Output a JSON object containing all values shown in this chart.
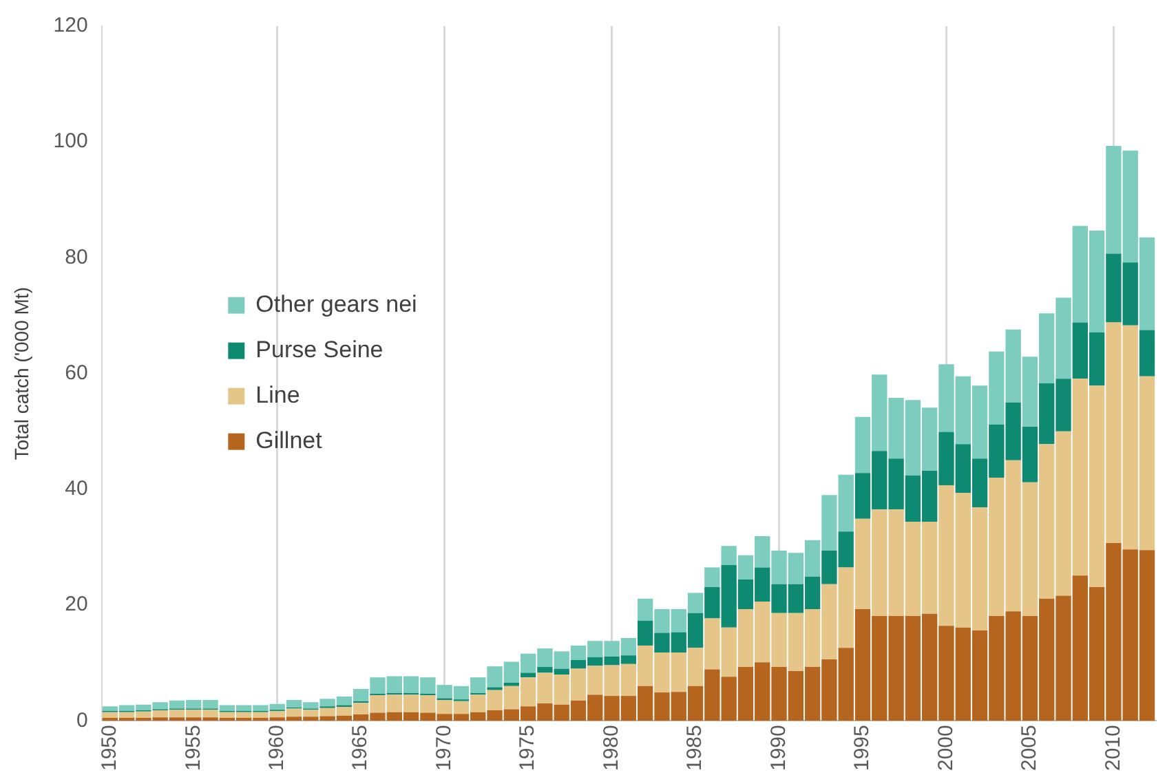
{
  "chart_data": {
    "type": "bar",
    "stacked": true,
    "ylabel": "Total catch ('000 Mt)",
    "categories": [
      "1950",
      null,
      null,
      null,
      null,
      "1955",
      null,
      null,
      null,
      null,
      "1960",
      null,
      null,
      null,
      null,
      "1965",
      null,
      null,
      null,
      null,
      "1970",
      null,
      null,
      null,
      null,
      "1975",
      null,
      null,
      null,
      null,
      "1980",
      null,
      null,
      null,
      null,
      "1985",
      null,
      null,
      null,
      null,
      "1990",
      null,
      null,
      null,
      null,
      "1995",
      null,
      null,
      null,
      null,
      "2000",
      null,
      null,
      null,
      null,
      "2005",
      null,
      null,
      null,
      null,
      "2010",
      null,
      null
    ],
    "series": [
      {
        "name": "Gillnet",
        "color": "#b5651d",
        "values": [
          0.5,
          0.5,
          0.5,
          0.6,
          0.6,
          0.6,
          0.6,
          0.5,
          0.5,
          0.5,
          0.6,
          0.7,
          0.7,
          0.8,
          0.9,
          1.1,
          1.4,
          1.5,
          1.5,
          1.4,
          1.2,
          1.2,
          1.5,
          1.8,
          2.0,
          2.5,
          3.0,
          2.8,
          3.5,
          4.5,
          4.3,
          4.3,
          6.0,
          4.9,
          5.0,
          6.0,
          8.9,
          7.6,
          9.3,
          10.1,
          9.3,
          8.6,
          9.3,
          10.6,
          12.6,
          19.3,
          18.1,
          18.1,
          18.1,
          18.5,
          16.4,
          16.1,
          15.6,
          18.1,
          18.9,
          18.1,
          21.1,
          21.6,
          25.1,
          23.1,
          30.7,
          29.6,
          29.5
        ]
      },
      {
        "name": "Line",
        "color": "#e6c688",
        "values": [
          1.0,
          1.0,
          1.1,
          1.2,
          1.3,
          1.3,
          1.3,
          1.0,
          1.0,
          1.0,
          1.1,
          1.4,
          1.2,
          1.4,
          1.5,
          2.0,
          3.0,
          3.0,
          3.0,
          3.0,
          2.4,
          2.2,
          3.0,
          3.5,
          4.0,
          5.0,
          5.3,
          5.2,
          5.5,
          5.0,
          5.3,
          5.5,
          7.0,
          6.9,
          6.8,
          6.6,
          8.8,
          8.5,
          10.0,
          10.5,
          9.3,
          10.0,
          10.0,
          13.0,
          13.9,
          15.6,
          18.4,
          18.4,
          16.3,
          15.9,
          24.3,
          23.3,
          21.3,
          23.9,
          26.1,
          23.1,
          26.7,
          28.4,
          34.0,
          34.8,
          38.1,
          38.7,
          30.0
        ]
      },
      {
        "name": "Purse Seine",
        "color": "#0f8a72",
        "values": [
          0.2,
          0.2,
          0.2,
          0.2,
          0.2,
          0.2,
          0.2,
          0.2,
          0.2,
          0.2,
          0.2,
          0.2,
          0.2,
          0.3,
          0.3,
          0.3,
          0.3,
          0.3,
          0.3,
          0.3,
          0.3,
          0.3,
          0.3,
          0.5,
          0.6,
          0.8,
          1.0,
          1.0,
          1.5,
          1.5,
          1.5,
          1.5,
          4.3,
          3.4,
          3.5,
          6.0,
          5.4,
          10.8,
          5.1,
          5.9,
          5.0,
          5.0,
          5.6,
          5.8,
          6.2,
          7.9,
          10.1,
          8.8,
          8.0,
          8.8,
          9.2,
          8.4,
          8.4,
          9.2,
          10.0,
          9.6,
          10.5,
          9.1,
          9.7,
          9.2,
          11.9,
          10.9,
          8.0
        ]
      },
      {
        "name": "Other gears nei",
        "color": "#7dcdbe",
        "values": [
          0.8,
          1.0,
          1.0,
          1.2,
          1.4,
          1.5,
          1.5,
          1.0,
          1.0,
          1.0,
          1.0,
          1.3,
          1.1,
          1.3,
          1.5,
          2.1,
          2.8,
          2.9,
          2.9,
          2.8,
          2.3,
          2.3,
          2.7,
          3.6,
          3.6,
          3.3,
          3.2,
          3.0,
          2.5,
          2.8,
          2.7,
          3.0,
          3.8,
          4.1,
          4.0,
          3.5,
          3.4,
          3.3,
          4.2,
          5.4,
          5.8,
          5.4,
          6.3,
          9.6,
          9.8,
          9.7,
          13.2,
          10.5,
          13.0,
          10.9,
          11.7,
          11.7,
          12.6,
          12.6,
          12.6,
          12.1,
          12.1,
          14.0,
          16.7,
          17.6,
          18.6,
          19.3,
          16.0
        ]
      }
    ],
    "ylim": [
      0,
      120
    ],
    "yticks": [
      0,
      20,
      40,
      60,
      80,
      100,
      120
    ],
    "legend": "left",
    "grid": "x"
  }
}
